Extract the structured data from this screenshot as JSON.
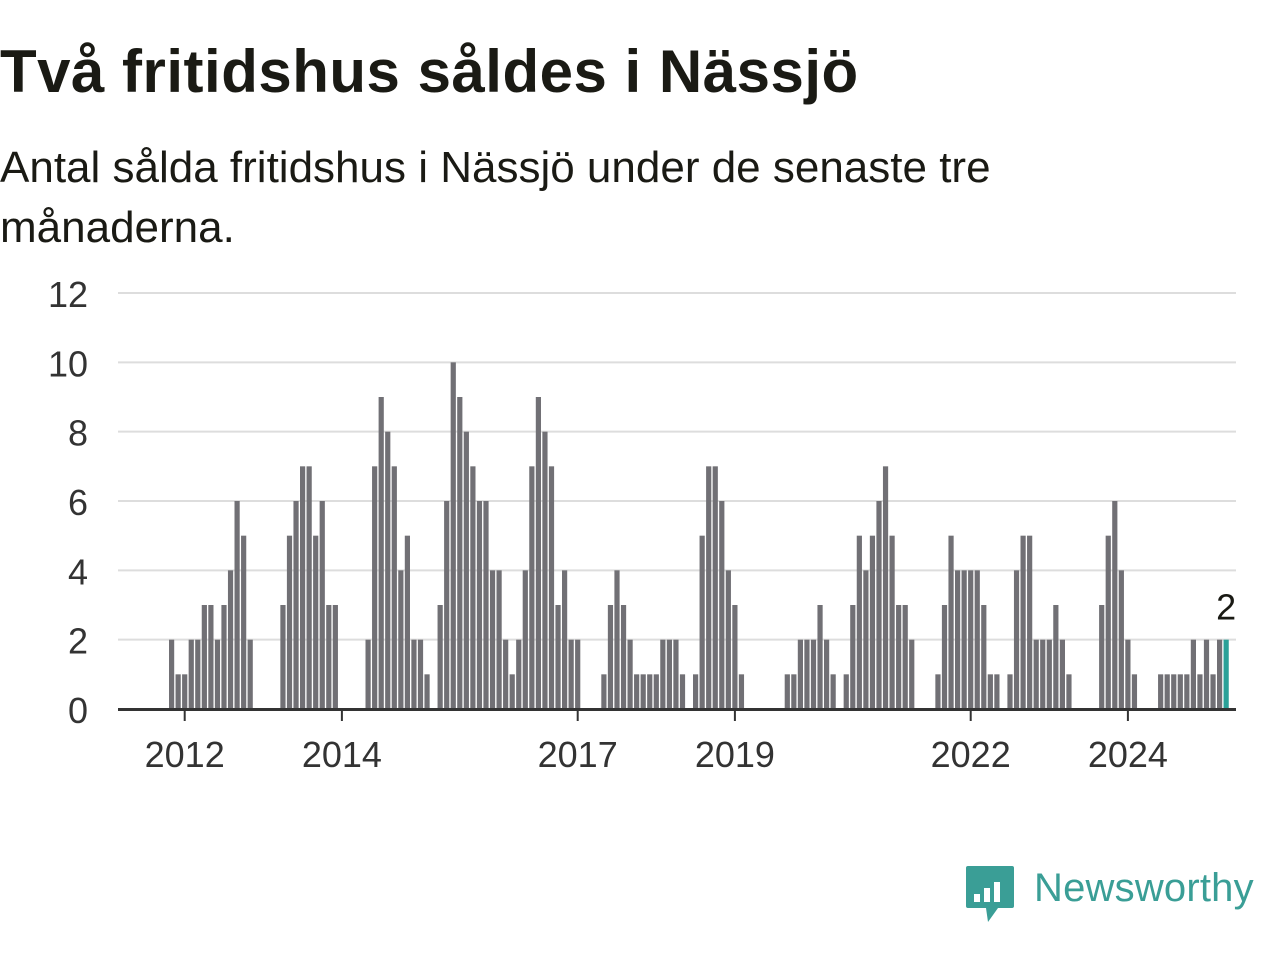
{
  "header": {
    "title": "Två fritidshus såldes i Nässjö",
    "subtitle": "Antal sålda fritidshus i Nässjö under de senaste tre månaderna."
  },
  "logo": {
    "text": "Newsworthy",
    "icon": "newsworthy-logo-icon",
    "color": "#3a9e96"
  },
  "chart_data": {
    "type": "bar",
    "title": "Två fritidshus såldes i Nässjö",
    "subtitle": "Antal sålda fritidshus i Nässjö under de senaste tre månaderna.",
    "xlabel": "",
    "ylabel": "",
    "ylim": [
      0,
      12
    ],
    "yticks": [
      0,
      2,
      4,
      6,
      8,
      10,
      12
    ],
    "xtick_labels": [
      "2012",
      "2014",
      "2017",
      "2019",
      "2022",
      "2024"
    ],
    "grid": true,
    "bar_color": "#717075",
    "highlight_color": "#2aa198",
    "highlight_label": "2",
    "start_month": "2011-11",
    "values": [
      2,
      1,
      1,
      2,
      2,
      3,
      3,
      2,
      3,
      4,
      6,
      5,
      2,
      0,
      0,
      0,
      0,
      3,
      5,
      6,
      7,
      7,
      5,
      6,
      3,
      3,
      0,
      0,
      0,
      0,
      2,
      7,
      9,
      8,
      7,
      4,
      5,
      2,
      2,
      1,
      0,
      3,
      6,
      10,
      9,
      8,
      7,
      6,
      6,
      4,
      4,
      2,
      1,
      2,
      4,
      7,
      9,
      8,
      7,
      3,
      4,
      2,
      2,
      0,
      0,
      0,
      1,
      3,
      4,
      3,
      2,
      1,
      1,
      1,
      1,
      2,
      2,
      2,
      1,
      0,
      1,
      5,
      7,
      7,
      6,
      4,
      3,
      1,
      0,
      0,
      0,
      0,
      0,
      0,
      1,
      1,
      2,
      2,
      2,
      3,
      2,
      1,
      0,
      1,
      3,
      5,
      4,
      5,
      6,
      7,
      5,
      3,
      3,
      2,
      0,
      0,
      0,
      1,
      3,
      5,
      4,
      4,
      4,
      4,
      3,
      1,
      1,
      0,
      1,
      4,
      5,
      5,
      2,
      2,
      2,
      3,
      2,
      1,
      0,
      0,
      0,
      0,
      3,
      5,
      6,
      4,
      2,
      1,
      0,
      0,
      0,
      1,
      1,
      1,
      1,
      1,
      2,
      1,
      2,
      1,
      2,
      2
    ]
  }
}
